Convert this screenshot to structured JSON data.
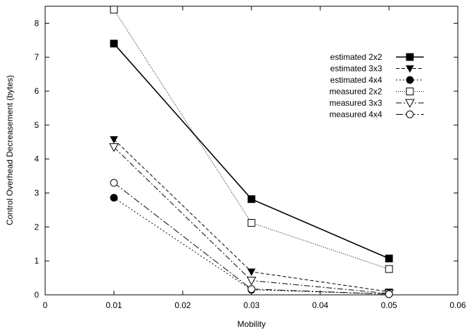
{
  "chart_data": {
    "type": "line",
    "title": "",
    "xlabel": "Mobility",
    "ylabel": "Control Overhead Decreasement (bytes)",
    "xlim": [
      0,
      0.06
    ],
    "ylim": [
      0,
      8.5
    ],
    "xticks": [
      0,
      0.01,
      0.02,
      0.03,
      0.04,
      0.05,
      0.06
    ],
    "xtick_labels": [
      "0",
      "0.01",
      "0.02",
      "0.03",
      "0.04",
      "0.05",
      "0.06"
    ],
    "yticks": [
      0,
      1,
      2,
      3,
      4,
      5,
      6,
      7,
      8
    ],
    "ytick_labels": [
      "0",
      "1",
      "2",
      "3",
      "4",
      "5",
      "6",
      "7",
      "8"
    ],
    "grid": false,
    "legend_position": "top-right",
    "x": [
      0.01,
      0.03,
      0.05
    ],
    "series": [
      {
        "name": "estimated 2x2",
        "values": [
          7.4,
          2.82,
          1.07
        ],
        "marker": "square-filled",
        "dash": "solid"
      },
      {
        "name": "estimated 3x3",
        "values": [
          4.58,
          0.68,
          0.09
        ],
        "marker": "triangle-down-filled",
        "dash": "dashed"
      },
      {
        "name": "estimated 4x4",
        "values": [
          2.86,
          0.15,
          0.02
        ],
        "marker": "circle-filled",
        "dash": "dotted"
      },
      {
        "name": "measured 2x2",
        "values": [
          8.4,
          2.12,
          0.76
        ],
        "marker": "square-open",
        "dash": "fine-dotted"
      },
      {
        "name": "measured 3x3",
        "values": [
          4.35,
          0.42,
          0.04
        ],
        "marker": "triangle-down-open",
        "dash": "dash-dot"
      },
      {
        "name": "measured 4x4",
        "values": [
          3.3,
          0.17,
          0.02
        ],
        "marker": "circle-open",
        "dash": "dash-dot-long"
      }
    ]
  }
}
